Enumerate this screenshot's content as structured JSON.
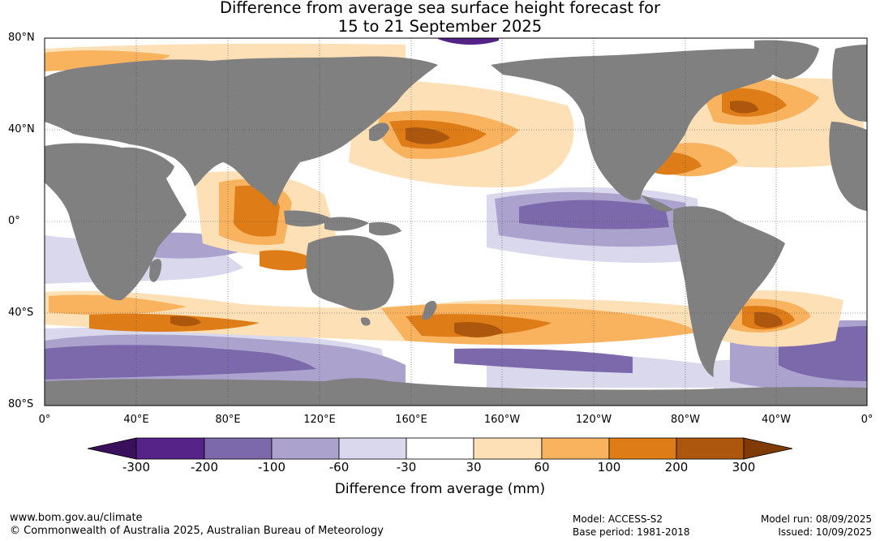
{
  "title_line1": "Difference from average sea surface height forecast for",
  "title_line2": "15 to 21 September 2025",
  "lat_labels": [
    "80°N",
    "40°N",
    "0°",
    "40°S",
    "80°S"
  ],
  "lon_labels": [
    "0°",
    "40°E",
    "80°E",
    "120°E",
    "160°E",
    "160°W",
    "120°W",
    "80°W",
    "40°W",
    "0°"
  ],
  "colorbar": {
    "labels": [
      "-300",
      "-200",
      "-100",
      "-60",
      "-30",
      "30",
      "60",
      "100",
      "200",
      "300"
    ],
    "colors": [
      "#3a0f5c",
      "#552288",
      "#7b69ab",
      "#aba3cd",
      "#d9d8ec",
      "#ffffff",
      "#fde0b6",
      "#f9b25e",
      "#de7d17",
      "#ad560d",
      "#7f3a06"
    ],
    "title": "Difference from average (mm)"
  },
  "colors": {
    "land": "#808080",
    "grid": "#4d4d4d"
  },
  "footer": {
    "left_line1": "www.bom.gov.au/climate",
    "left_line2": "© Commonwealth of Australia 2025, Australian Bureau of Meteorology",
    "model": "Model: ACCESS-S2",
    "base_period": "Base period: 1981-2018",
    "model_run": "Model run: 08/09/2025",
    "issued": "Issued: 10/09/2025"
  }
}
